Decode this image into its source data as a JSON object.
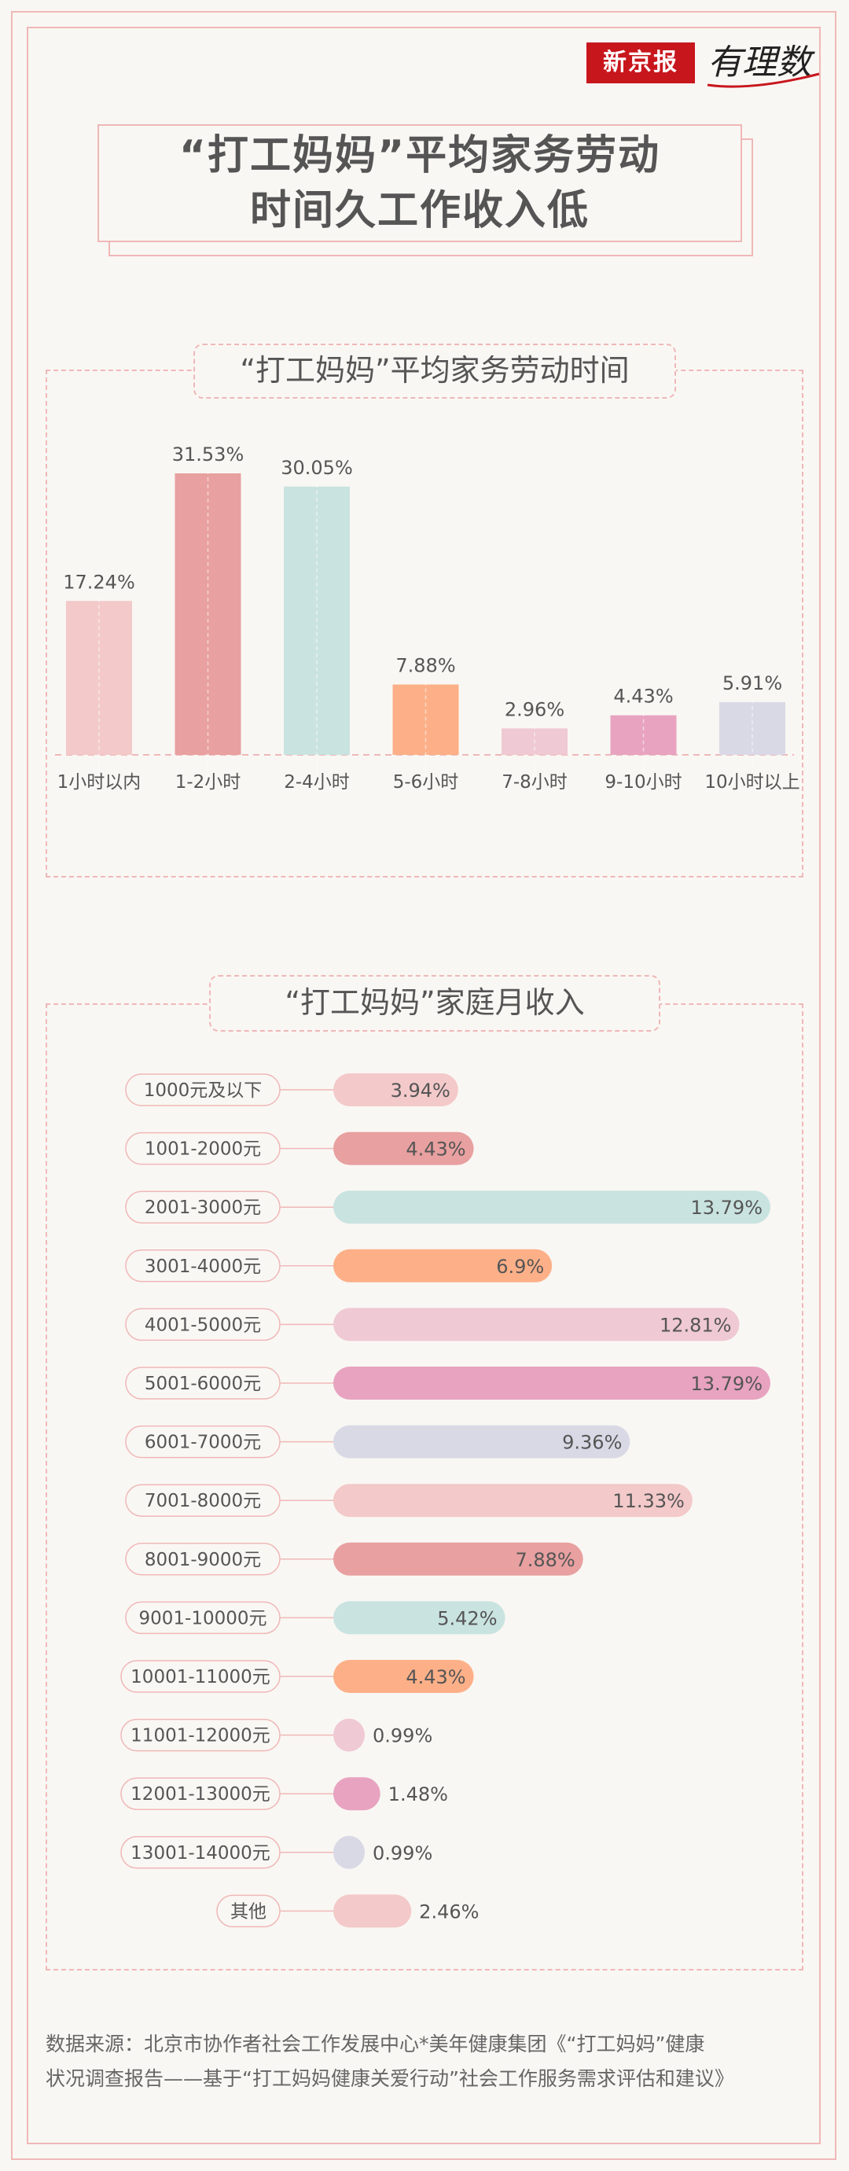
{
  "brand": {
    "name": "新京报",
    "sub": "有理数"
  },
  "title": {
    "line1": "“打工妈妈”平均家务劳动",
    "line2": "时间久工作收入低"
  },
  "section1": {
    "title": "“打工妈妈”平均家务劳动时间"
  },
  "section2": {
    "title": "“打工妈妈”家庭月收入"
  },
  "colors": {
    "palette": [
      "#f3c9c9",
      "#e8a0a0",
      "#c9e3e0",
      "#fdb088",
      "#efc9d3",
      "#e8a3c0",
      "#d9d9e6"
    ],
    "text": "#555555",
    "border": "#efb8b8"
  },
  "chart_data": [
    {
      "type": "bar",
      "title": "“打工妈妈”平均家务劳动时间",
      "categories": [
        "1小时以内",
        "1-2小时",
        "2-4小时",
        "5-6小时",
        "7-8小时",
        "9-10小时",
        "10小时以上"
      ],
      "values": [
        17.24,
        31.53,
        30.05,
        7.88,
        2.96,
        4.43,
        5.91
      ],
      "labels": [
        "17.24%",
        "31.53%",
        "30.05%",
        "7.88%",
        "2.96%",
        "4.43%",
        "5.91%"
      ],
      "xlabel": "",
      "ylabel": "",
      "ylim": [
        0,
        31.53
      ],
      "grid": false
    },
    {
      "type": "bar",
      "orientation": "horizontal",
      "title": "“打工妈妈”家庭月收入",
      "categories": [
        "1000元及以下",
        "1001-2000元",
        "2001-3000元",
        "3001-4000元",
        "4001-5000元",
        "5001-6000元",
        "6001-7000元",
        "7001-8000元",
        "8001-9000元",
        "9001-10000元",
        "10001-11000元",
        "11001-12000元",
        "12001-13000元",
        "13001-14000元",
        "其他"
      ],
      "values": [
        3.94,
        4.43,
        13.79,
        6.9,
        12.81,
        13.79,
        9.36,
        11.33,
        7.88,
        5.42,
        4.43,
        0.99,
        1.48,
        0.99,
        2.46
      ],
      "labels": [
        "3.94%",
        "4.43%",
        "13.79%",
        "6.9%",
        "12.81%",
        "13.79%",
        "9.36%",
        "11.33%",
        "7.88%",
        "5.42%",
        "4.43%",
        "0.99%",
        "1.48%",
        "0.99%",
        "2.46%"
      ],
      "xlabel": "",
      "ylabel": "",
      "xlim": [
        0,
        13.79
      ],
      "grid": false
    }
  ],
  "source": {
    "line1": "数据来源：北京市协作者社会工作发展中心*美年健康集团《“打工妈妈”健康",
    "line2": "状况调查报告——基于“打工妈妈健康关爱行动”社会工作服务需求评估和建议》"
  }
}
